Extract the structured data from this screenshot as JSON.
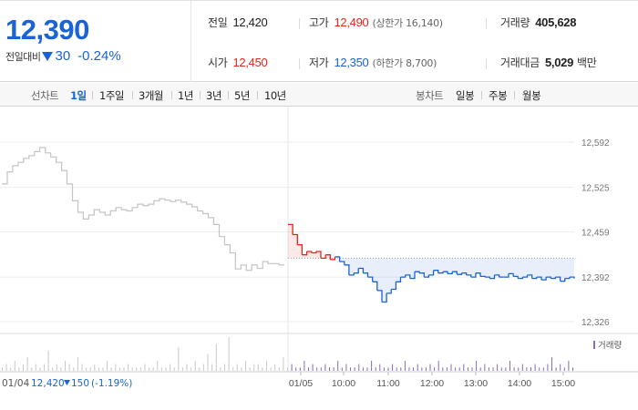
{
  "quote": {
    "price": "12,390",
    "change_label": "전일대비",
    "change_amount": "30",
    "change_percent": "-0.24%",
    "stats": {
      "prev_close": {
        "label": "전일",
        "value": "12,420"
      },
      "high": {
        "label": "고가",
        "value": "12,490",
        "sub": "(상한가 16,140)"
      },
      "volume": {
        "label": "거래량",
        "value": "405,628"
      },
      "open": {
        "label": "시가",
        "value": "12,450"
      },
      "low": {
        "label": "저가",
        "value": "12,350",
        "sub": "(하한가 8,700)"
      },
      "amount": {
        "label": "거래대금",
        "value": "5,029",
        "unit": "백만"
      }
    },
    "colors": {
      "up": "#e2261c",
      "down": "#1b63d4"
    }
  },
  "period_bar": {
    "line_label": "선차트",
    "line_periods": [
      "1일",
      "1주일",
      "3개월",
      "1년",
      "3년",
      "5년",
      "10년"
    ],
    "active_period": "1일",
    "candle_label": "봉차트",
    "candle_periods": [
      "일봉",
      "주봉",
      "월봉"
    ]
  },
  "chart_data": {
    "type": "line",
    "y_ticks": [
      "12,592",
      "12,525",
      "12,459",
      "12,392",
      "12,326"
    ],
    "ylim": [
      12326,
      12592
    ],
    "prev_close": 12420,
    "volume_legend": "거래량",
    "x_ticks": [
      "01/04",
      "01/05",
      "10:00",
      "11:00",
      "12:00",
      "13:00",
      "14:00",
      "15:00"
    ],
    "prev_day_summary": {
      "date": "01/04",
      "close": "12,420",
      "change": "150",
      "change_percent": "(-1.19%)"
    },
    "series": [
      {
        "day": "01/04",
        "values": [
          12530,
          12548,
          12557,
          12562,
          12568,
          12572,
          12578,
          12584,
          12576,
          12570,
          12562,
          12550,
          12530,
          12505,
          12488,
          12478,
          12484,
          12492,
          12488,
          12484,
          12490,
          12495,
          12492,
          12490,
          12495,
          12500,
          12498,
          12500,
          12505,
          12508,
          12506,
          12504,
          12506,
          12503,
          12500,
          12496,
          12490,
          12486,
          12480,
          12470,
          12452,
          12440,
          12428,
          12404,
          12410,
          12402,
          12410,
          12405,
          12415,
          12412,
          12412,
          12410,
          12410
        ]
      },
      {
        "day": "01/05",
        "values": [
          12470,
          12455,
          12440,
          12425,
          12430,
          12428,
          12430,
          12420,
          12425,
          12418,
          12422,
          12415,
          12410,
          12395,
          12398,
          12405,
          12398,
          12392,
          12385,
          12372,
          12355,
          12368,
          12374,
          12385,
          12392,
          12395,
          12390,
          12400,
          12398,
          12392,
          12395,
          12402,
          12398,
          12400,
          12397,
          12400,
          12396,
          12398,
          12395,
          12392,
          12398,
          12393,
          12392,
          12390,
          12395,
          12392,
          12392,
          12397,
          12393,
          12390,
          12392,
          12395,
          12390,
          12392,
          12388,
          12392,
          12390,
          12392,
          12386,
          12390,
          12392,
          12390
        ]
      }
    ],
    "volume": [
      1,
      2,
      1,
      3,
      1,
      2,
      4,
      1,
      2,
      1,
      2,
      6,
      1,
      2,
      1,
      3,
      2,
      1,
      4,
      2,
      1,
      1,
      2,
      1,
      1,
      3,
      1,
      2,
      1,
      1,
      2,
      1,
      1,
      1,
      2,
      1,
      1,
      3,
      1,
      1,
      2,
      1,
      7,
      1,
      2,
      1,
      3,
      1,
      2,
      5,
      2,
      8,
      1,
      2,
      10,
      1,
      2,
      1,
      3,
      1,
      2,
      2,
      1,
      3,
      1,
      2,
      1,
      4,
      1,
      2,
      1,
      1,
      3,
      1,
      2,
      1,
      1,
      2,
      1,
      1,
      3,
      1,
      2,
      1,
      1,
      2,
      1,
      1,
      3,
      1,
      2,
      1,
      1,
      2,
      1,
      1,
      3,
      1,
      1,
      2,
      1,
      1,
      2,
      1,
      3,
      1,
      1,
      2,
      1,
      1,
      2,
      1,
      1,
      3,
      1,
      2,
      1,
      1,
      2,
      1,
      1,
      3,
      1,
      1,
      2,
      1,
      1,
      2,
      1,
      1,
      2,
      4,
      1,
      2,
      1,
      3,
      1
    ]
  }
}
